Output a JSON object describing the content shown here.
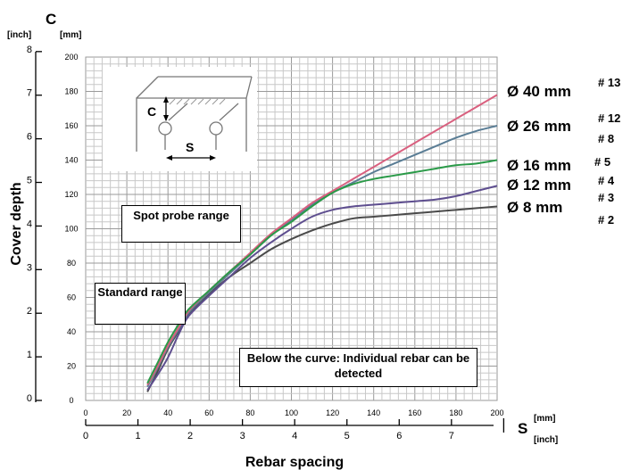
{
  "chart_data": {
    "type": "line",
    "ylabel": "Cover depth",
    "xlabel": "Rebar spacing",
    "y_axis": {
      "symbol": "C",
      "unit_primary": "[mm]",
      "unit_secondary": "[inch]"
    },
    "x_axis": {
      "symbol": "S",
      "unit_primary": "[mm]",
      "unit_secondary": "[inch]"
    },
    "xlim_mm": [
      0,
      200
    ],
    "ylim_mm": [
      0,
      200
    ],
    "x_ticks_mm": [
      "0",
      "20",
      "40",
      "60",
      "80",
      "100",
      "120",
      "140",
      "160",
      "180",
      "200"
    ],
    "y_ticks_mm": [
      "0",
      "20",
      "40",
      "60",
      "80",
      "100",
      "120",
      "140",
      "160",
      "180",
      "200"
    ],
    "x_ticks_inch": [
      "0",
      "1",
      "2",
      "3",
      "4",
      "5",
      "6",
      "7"
    ],
    "y_ticks_inch": [
      "0",
      "1",
      "2",
      "3",
      "4",
      "5",
      "6",
      "7",
      "8"
    ],
    "grid": true,
    "series": [
      {
        "name": "Ø 40 mm",
        "rebar_no": "# 13",
        "color": "#d9607f",
        "x": [
          30,
          35,
          40,
          45,
          50,
          60,
          70,
          80,
          90,
          100,
          110,
          120,
          130,
          140,
          150,
          160,
          170,
          180,
          190,
          200
        ],
        "y": [
          9,
          20,
          32,
          42,
          52,
          64,
          75,
          86,
          97,
          106,
          115,
          122,
          129,
          136,
          143,
          150,
          157,
          164,
          171,
          178
        ]
      },
      {
        "name": "Ø 26 mm",
        "rebar_no": "# 12\n# 8",
        "color": "#5a7d95",
        "x": [
          30,
          35,
          40,
          45,
          50,
          60,
          70,
          80,
          90,
          100,
          110,
          120,
          130,
          140,
          150,
          160,
          170,
          180,
          190,
          200
        ],
        "y": [
          8,
          19,
          31,
          41,
          51,
          63,
          74,
          85,
          96,
          105,
          114,
          121,
          127,
          133,
          138,
          143,
          148,
          153,
          157,
          160
        ]
      },
      {
        "name": "Ø 16 mm",
        "rebar_no": "# 5",
        "color": "#2a9a48",
        "x": [
          30,
          35,
          40,
          45,
          50,
          60,
          70,
          80,
          90,
          100,
          110,
          120,
          130,
          140,
          150,
          160,
          170,
          180,
          190,
          200
        ],
        "y": [
          10,
          22,
          34,
          44,
          53,
          64,
          75,
          85,
          96,
          104,
          113,
          121,
          126,
          129,
          131,
          133,
          135,
          137,
          138,
          140
        ]
      },
      {
        "name": "Ø 12 mm",
        "rebar_no": "# 4\n# 3",
        "color": "#5e4e8f",
        "x": [
          30,
          35,
          40,
          45,
          50,
          60,
          70,
          80,
          90,
          100,
          110,
          120,
          130,
          140,
          150,
          160,
          170,
          180,
          190,
          200
        ],
        "y": [
          6,
          15,
          25,
          38,
          49,
          61,
          72,
          83,
          92,
          100,
          107,
          111,
          113,
          114,
          115,
          116,
          117,
          119,
          122,
          125
        ]
      },
      {
        "name": "Ø 8 mm",
        "rebar_no": "# 2",
        "color": "#4a4a4a",
        "x": [
          30,
          35,
          40,
          45,
          50,
          60,
          70,
          80,
          90,
          100,
          110,
          120,
          130,
          140,
          150,
          160,
          170,
          180,
          190,
          200
        ],
        "y": [
          5,
          17,
          30,
          40,
          50,
          62,
          72,
          80,
          88,
          94,
          99,
          103,
          106,
          107,
          108,
          109,
          110,
          111,
          112,
          113
        ]
      }
    ],
    "annotations": {
      "spot_probe": "Spot probe range",
      "standard": "Standard range",
      "below_curve": "Below the curve: Individual rebar can be detected"
    },
    "inset": {
      "c_label": "C",
      "s_label": "S"
    }
  }
}
